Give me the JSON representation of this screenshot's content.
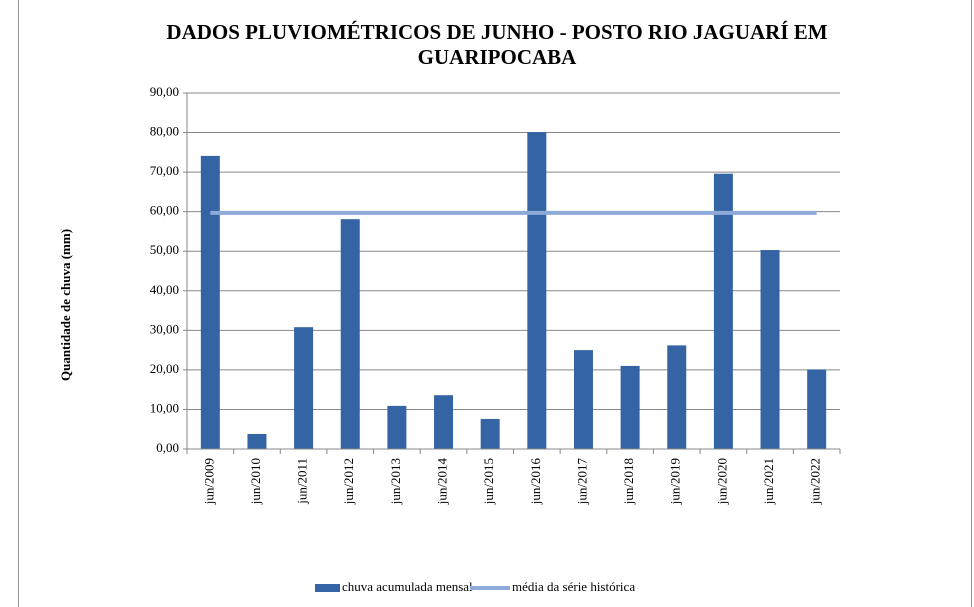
{
  "chart_data": {
    "type": "bar",
    "title": "DADOS PLUVIOMÉTRICOS DE JUNHO - POSTO RIO JAGUARÍ EM GUARIPOCABA",
    "ylabel": "Quantidade de chuva (mm)",
    "categories": [
      "jun/2009",
      "jun/2010",
      "jun/2011",
      "jun/2012",
      "jun/2013",
      "jun/2014",
      "jun/2015",
      "jun/2016",
      "jun/2017",
      "jun/2018",
      "jun/2019",
      "jun/2020",
      "jun/2021",
      "jun/2022"
    ],
    "series": [
      {
        "name": "chuva acumulada mensal",
        "type": "bar",
        "color": "#3464a3",
        "values": [
          74.1,
          3.8,
          30.8,
          58.1,
          10.9,
          13.6,
          7.6,
          80.1,
          25.0,
          21.0,
          26.2,
          69.6,
          50.3,
          20.1
        ]
      },
      {
        "name": "média da série histórica",
        "type": "line",
        "color": "#8eaad8",
        "values": [
          59.7,
          59.7,
          59.7,
          59.7,
          59.7,
          59.7,
          59.7,
          59.7,
          59.7,
          59.7,
          59.7,
          59.7,
          59.7,
          59.7
        ]
      }
    ],
    "ylim": [
      0,
      90
    ],
    "yticks": [
      {
        "value": 0,
        "label": "0,00"
      },
      {
        "value": 10,
        "label": "10,00"
      },
      {
        "value": 20,
        "label": "20,00"
      },
      {
        "value": 30,
        "label": "30,00"
      },
      {
        "value": 40,
        "label": "40,00"
      },
      {
        "value": 50,
        "label": "50,00"
      },
      {
        "value": 60,
        "label": "60,00"
      },
      {
        "value": 70,
        "label": "70,00"
      },
      {
        "value": 80,
        "label": "80,00"
      },
      {
        "value": 90,
        "label": "90,00"
      }
    ],
    "grid": true
  }
}
